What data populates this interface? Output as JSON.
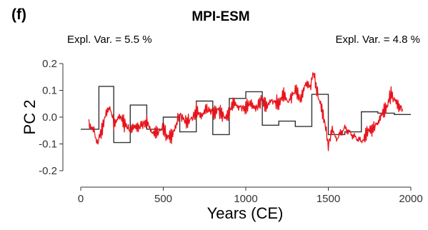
{
  "chart_data": {
    "type": "line",
    "panel_label": "(f)",
    "title": "MPI-ESM",
    "xlabel": "Years (CE)",
    "ylabel": "PC 2",
    "xlim": [
      0,
      2000
    ],
    "ylim": [
      -0.2,
      0.2
    ],
    "xticks": [
      0,
      500,
      1000,
      1500,
      2000
    ],
    "yticks": [
      -0.2,
      -0.1,
      0.0,
      0.1,
      0.2
    ],
    "xtick_labels": [
      "0",
      "500",
      "1000",
      "1500",
      "2000"
    ],
    "ytick_labels": [
      "-0.2",
      "-0.1",
      "0.0",
      "0.1",
      "0.2"
    ],
    "grid": false,
    "annotations": [
      {
        "text": "Expl. Var. = 5.5 %",
        "color": "#e8141c",
        "position": "top-left"
      },
      {
        "text": "Expl. Var. = 4.8 %",
        "color": "#333333",
        "position": "top-right"
      }
    ],
    "series": [
      {
        "color": "#e8141c",
        "style": "noisy-line",
        "x": [
          50,
          80,
          100,
          120,
          150,
          180,
          200,
          230,
          260,
          300,
          330,
          360,
          400,
          430,
          460,
          500,
          520,
          550,
          580,
          600,
          640,
          680,
          700,
          730,
          760,
          800,
          830,
          870,
          900,
          930,
          960,
          1000,
          1030,
          1060,
          1100,
          1130,
          1160,
          1200,
          1230,
          1260,
          1300,
          1330,
          1360,
          1390,
          1410,
          1430,
          1450,
          1480,
          1500,
          1520,
          1550,
          1600,
          1650,
          1700,
          1730,
          1760,
          1800,
          1830,
          1860,
          1880,
          1900,
          1930,
          1950
        ],
        "values": [
          -0.02,
          -0.05,
          -0.1,
          -0.06,
          0.01,
          0.03,
          -0.02,
          0.0,
          -0.02,
          -0.05,
          -0.04,
          -0.03,
          -0.02,
          -0.05,
          -0.06,
          -0.04,
          -0.07,
          -0.08,
          -0.02,
          0.01,
          -0.02,
          0.0,
          0.02,
          0.01,
          0.03,
          0.02,
          0.03,
          0.0,
          0.02,
          0.05,
          0.04,
          0.03,
          0.06,
          0.03,
          0.07,
          0.04,
          0.06,
          0.05,
          0.08,
          0.06,
          0.1,
          0.07,
          0.12,
          0.11,
          0.17,
          0.1,
          0.05,
          -0.02,
          -0.11,
          -0.05,
          -0.08,
          -0.04,
          -0.07,
          -0.09,
          -0.06,
          -0.05,
          -0.02,
          0.01,
          0.05,
          0.09,
          0.06,
          0.04,
          0.03
        ]
      },
      {
        "color": "#333333",
        "style": "step",
        "steps": [
          {
            "x0": 0,
            "x1": 110,
            "value": -0.045
          },
          {
            "x0": 110,
            "x1": 200,
            "value": 0.115
          },
          {
            "x0": 200,
            "x1": 300,
            "value": -0.095
          },
          {
            "x0": 300,
            "x1": 400,
            "value": 0.045
          },
          {
            "x0": 400,
            "x1": 500,
            "value": -0.045
          },
          {
            "x0": 500,
            "x1": 600,
            "value": 0.0
          },
          {
            "x0": 600,
            "x1": 700,
            "value": -0.055
          },
          {
            "x0": 700,
            "x1": 800,
            "value": 0.06
          },
          {
            "x0": 800,
            "x1": 900,
            "value": -0.065
          },
          {
            "x0": 900,
            "x1": 1000,
            "value": 0.07
          },
          {
            "x0": 1000,
            "x1": 1100,
            "value": 0.095
          },
          {
            "x0": 1100,
            "x1": 1200,
            "value": -0.03
          },
          {
            "x0": 1200,
            "x1": 1300,
            "value": -0.015
          },
          {
            "x0": 1300,
            "x1": 1400,
            "value": -0.035
          },
          {
            "x0": 1400,
            "x1": 1500,
            "value": 0.085
          },
          {
            "x0": 1500,
            "x1": 1600,
            "value": -0.065
          },
          {
            "x0": 1600,
            "x1": 1700,
            "value": -0.055
          },
          {
            "x0": 1700,
            "x1": 1800,
            "value": 0.02
          },
          {
            "x0": 1800,
            "x1": 1900,
            "value": 0.015
          },
          {
            "x0": 1900,
            "x1": 2000,
            "value": 0.01
          }
        ]
      }
    ]
  }
}
